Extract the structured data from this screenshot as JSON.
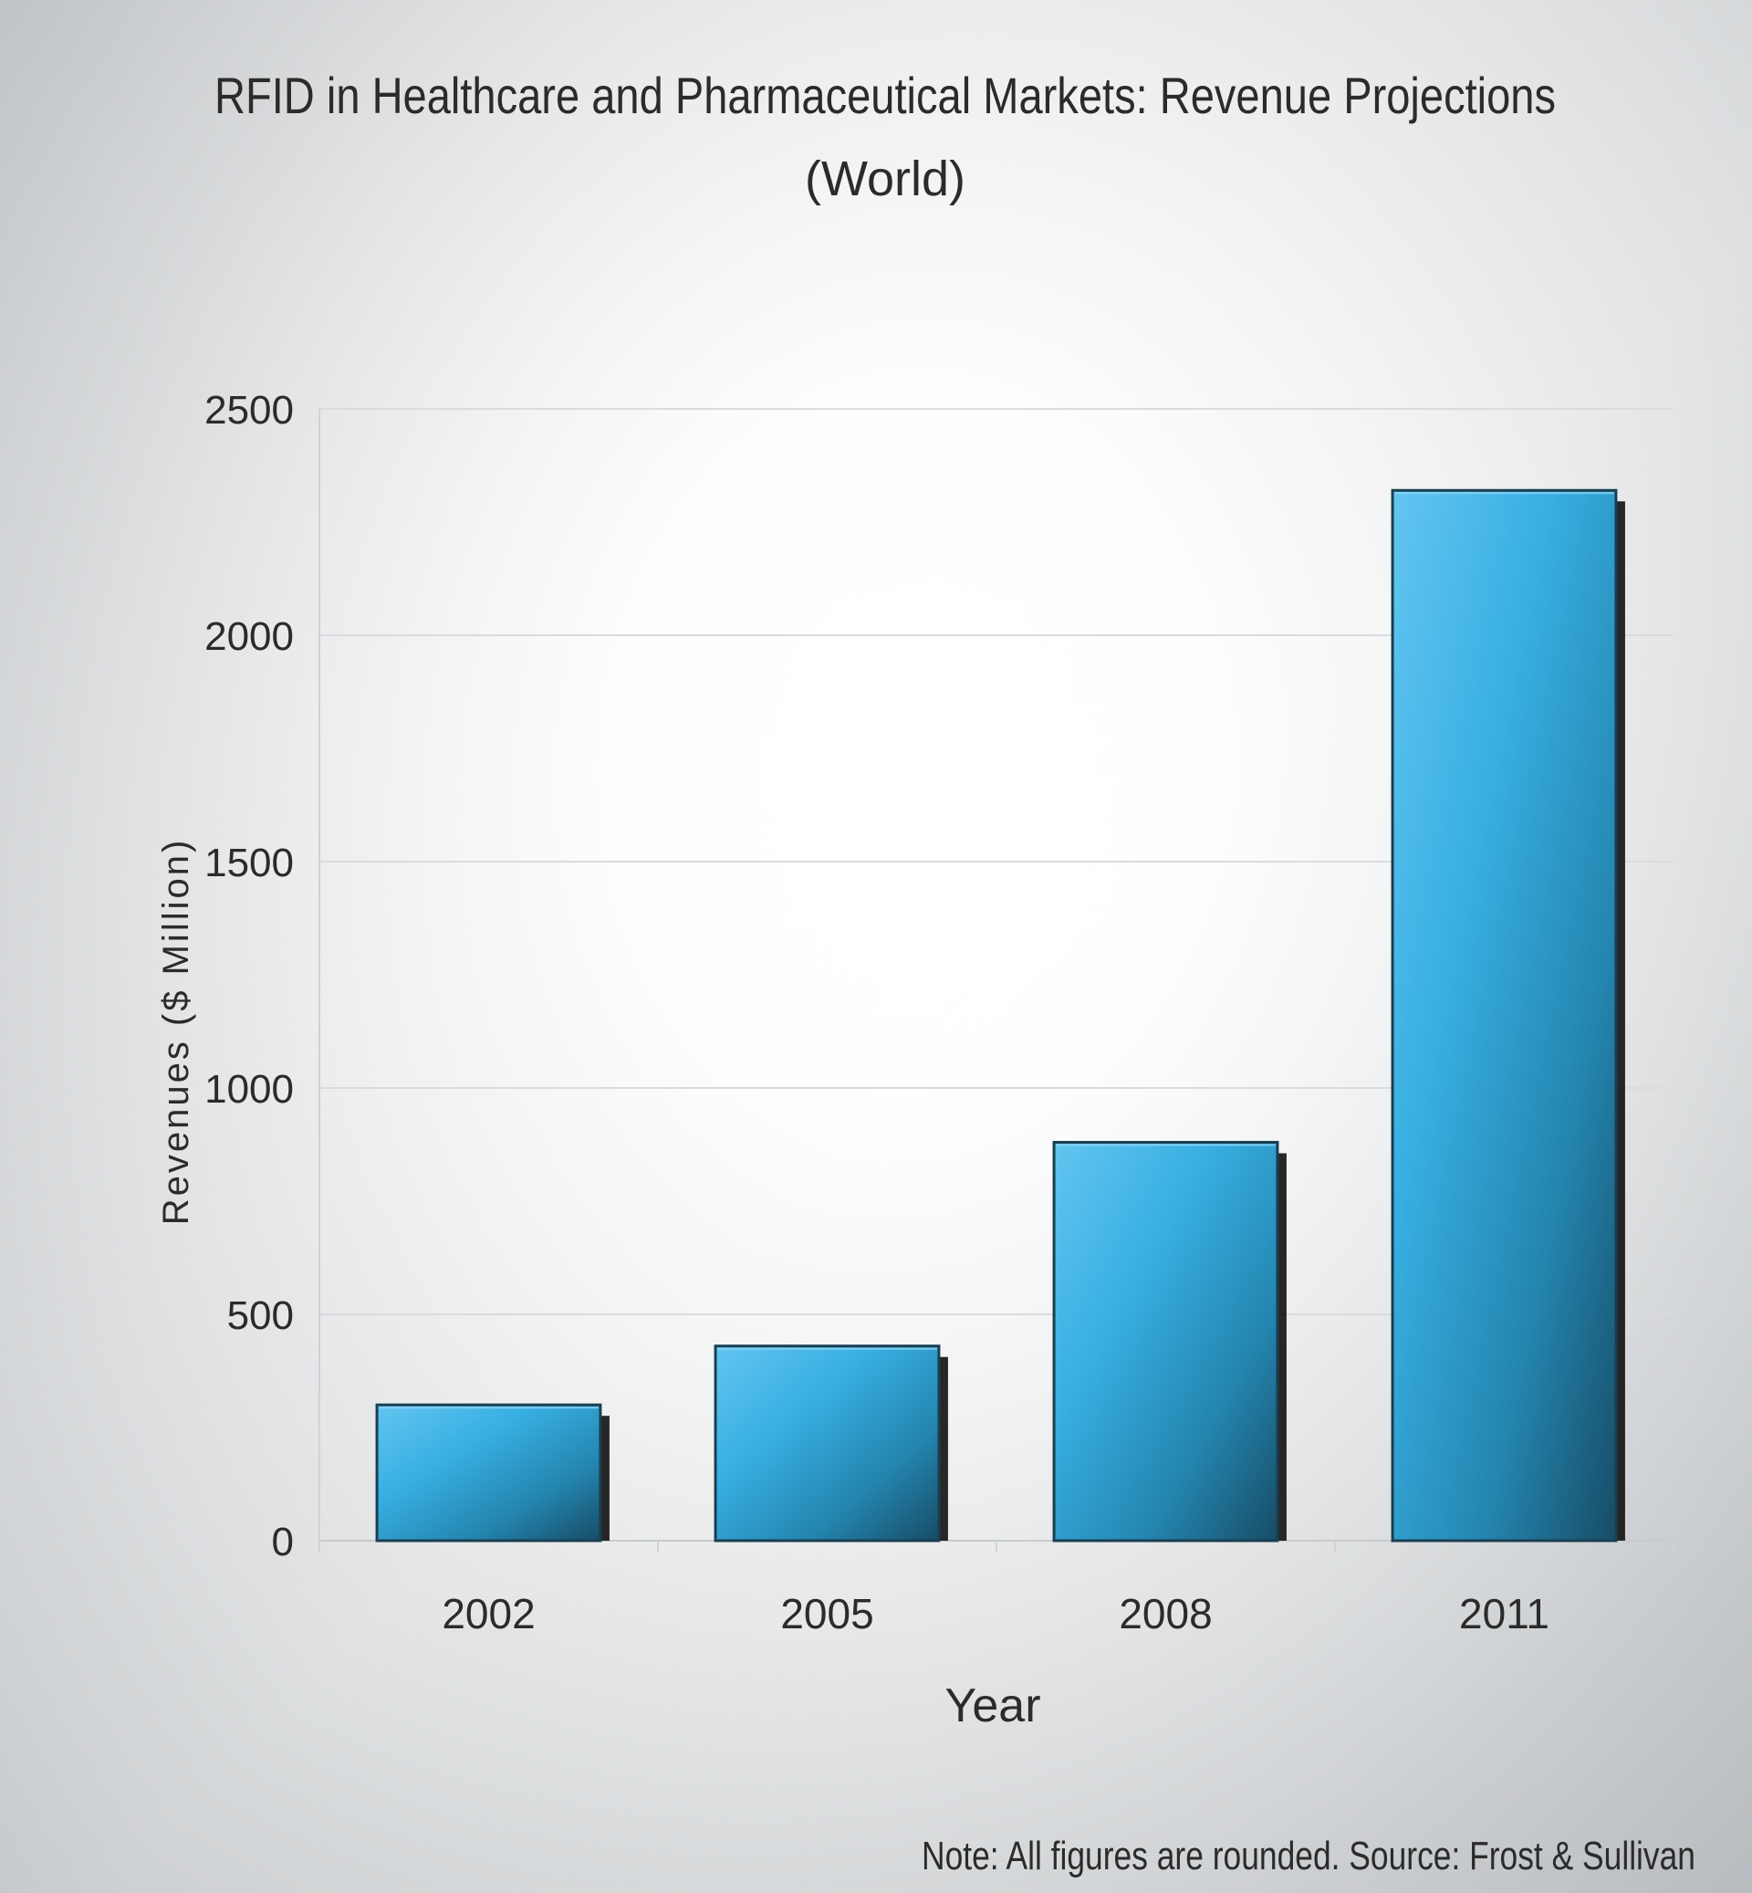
{
  "chart_data": {
    "type": "bar",
    "title": "RFID in Healthcare and Pharmaceutical Markets: Revenue Projections",
    "subtitle": "(World)",
    "categories": [
      "2002",
      "2005",
      "2008",
      "2011"
    ],
    "values": [
      300,
      430,
      880,
      2320
    ],
    "xlabel": "Year",
    "ylabel": "Revenues ($ Million)",
    "ylim": [
      0,
      2500
    ],
    "yticks": [
      0,
      500,
      1000,
      1500,
      2000,
      2500
    ],
    "grid": true,
    "note": "Note: All figures are rounded. Source: Frost & Sullivan"
  },
  "colors": {
    "bar_light": "#5bc0ec",
    "bar_mid": "#2ea3d1",
    "bar_dark": "#1b5a76",
    "bar_shadow": "#111111",
    "grid": "#d9dbdd",
    "text": "#2b2b2b"
  }
}
